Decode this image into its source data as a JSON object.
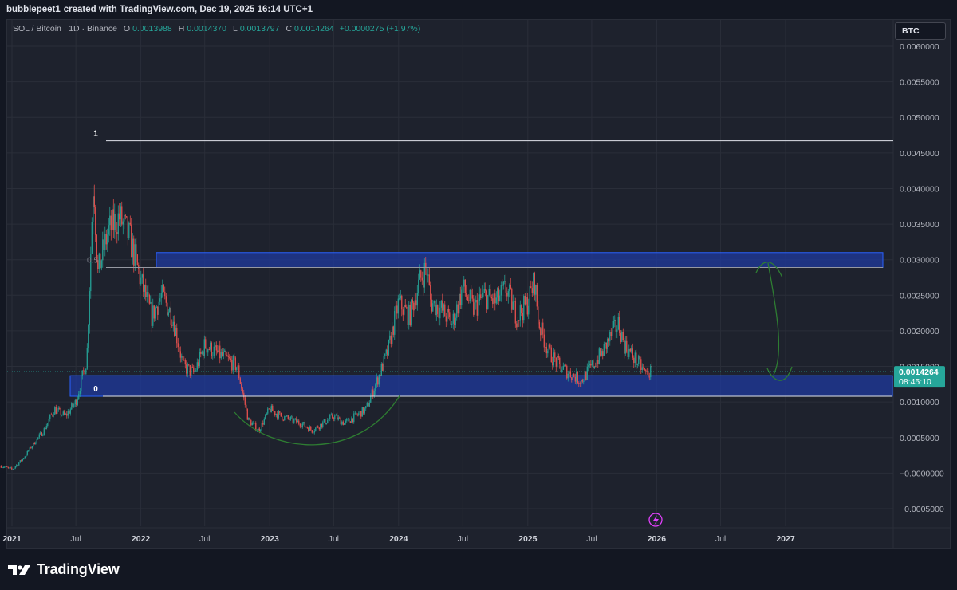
{
  "header": {
    "username": "bubblepeet1",
    "caption": "created with TradingView.com, Dec 19, 2025 16:14 UTC+1"
  },
  "legend": {
    "symbol": "SOL / Bitcoin · 1D · Binance",
    "open_label": "O",
    "open": "0.0013988",
    "high_label": "H",
    "high": "0.0014370",
    "low_label": "L",
    "low": "0.0013797",
    "close_label": "C",
    "close": "0.0014264",
    "change": "+0.0000275 (+1.97%)"
  },
  "toolbar": {
    "currency_button": "BTC"
  },
  "price_badge": {
    "price": "0.0014264",
    "countdown": "08:45:10"
  },
  "footer": {
    "brand": "TradingView",
    "logo_icon": "tradingview-logo-icon"
  },
  "colors": {
    "background": "#1e222d",
    "up": "#26a69a",
    "down": "#ef5350",
    "zone_fill": "#1f3a9e",
    "zone_border": "#2962ff",
    "arc": "#2e7d32"
  },
  "chart_data": {
    "type": "candlestick",
    "title": "SOL / Bitcoin · 1D · Binance",
    "y_axis_ticks": [
      "0.0060000",
      "0.0055000",
      "0.0050000",
      "0.0045000",
      "0.0040000",
      "0.0035000",
      "0.0030000",
      "0.0025000",
      "0.0020000",
      "0.0015000",
      "0.0010000",
      "0.0005000",
      "−0.0000000",
      "−0.0005000"
    ],
    "y_tick_values": [
      0.006,
      0.0055,
      0.005,
      0.0045,
      0.004,
      0.0035,
      0.003,
      0.0025,
      0.002,
      0.0015,
      0.001,
      0.0005,
      0.0,
      -0.0005
    ],
    "ylim": [
      -0.0005,
      0.006
    ],
    "x_axis_ticks": [
      "2021",
      "Jul",
      "2022",
      "Jul",
      "2023",
      "Jul",
      "2024",
      "Jul",
      "2025",
      "Jul",
      "2026",
      "Jul",
      "2027"
    ],
    "x_tick_dates": [
      "2021-01-01",
      "2021-07-01",
      "2022-01-01",
      "2022-07-01",
      "2023-01-01",
      "2023-07-01",
      "2024-01-01",
      "2024-07-01",
      "2025-01-01",
      "2025-07-01",
      "2026-01-01",
      "2026-07-01",
      "2027-01-01"
    ],
    "series": [
      {
        "x": [
          "2020-12-01",
          "2021-01-01",
          "2021-02-01",
          "2021-03-01",
          "2021-04-01",
          "2021-05-01",
          "2021-06-01",
          "2021-07-01",
          "2021-08-01",
          "2021-08-20",
          "2021-09-01",
          "2021-09-10",
          "2021-10-01",
          "2021-11-01",
          "2021-12-01",
          "2022-01-01",
          "2022-02-01",
          "2022-03-01",
          "2022-04-01",
          "2022-05-01",
          "2022-06-01",
          "2022-07-01",
          "2022-08-01",
          "2022-09-01",
          "2022-10-01",
          "2022-11-01",
          "2022-12-01",
          "2023-01-01",
          "2023-02-01",
          "2023-03-01",
          "2023-04-01",
          "2023-05-01",
          "2023-06-01",
          "2023-07-01",
          "2023-08-01",
          "2023-09-01",
          "2023-10-01",
          "2023-11-01",
          "2023-12-01",
          "2024-01-01",
          "2024-02-01",
          "2024-03-01",
          "2024-03-20",
          "2024-04-01",
          "2024-05-01",
          "2024-06-01",
          "2024-07-01",
          "2024-08-01",
          "2024-09-01",
          "2024-10-01",
          "2024-11-01",
          "2024-12-01",
          "2025-01-01",
          "2025-01-20",
          "2025-02-01",
          "2025-03-01",
          "2025-04-01",
          "2025-05-01",
          "2025-06-01",
          "2025-07-01",
          "2025-08-01",
          "2025-09-01",
          "2025-09-15",
          "2025-10-01",
          "2025-11-01",
          "2025-12-01",
          "2025-12-19"
        ],
        "close": [
          0.0001,
          5e-05,
          0.0002,
          0.0004,
          0.0006,
          0.0009,
          0.0008,
          0.001,
          0.0016,
          0.0042,
          0.0028,
          0.003,
          0.0034,
          0.0036,
          0.0033,
          0.0027,
          0.0022,
          0.0025,
          0.0022,
          0.0015,
          0.0014,
          0.0018,
          0.0017,
          0.0016,
          0.0015,
          0.00075,
          0.0006,
          0.0009,
          0.0008,
          0.00075,
          0.0007,
          0.0006,
          0.0007,
          0.0008,
          0.0007,
          0.0008,
          0.0009,
          0.0013,
          0.0017,
          0.0024,
          0.0022,
          0.0027,
          0.0029,
          0.0024,
          0.0023,
          0.0021,
          0.0026,
          0.0023,
          0.0025,
          0.0024,
          0.0026,
          0.0022,
          0.0024,
          0.0027,
          0.0021,
          0.0017,
          0.0015,
          0.0014,
          0.0013,
          0.0015,
          0.0017,
          0.002,
          0.0021,
          0.0018,
          0.0016,
          0.0014,
          0.0014264
        ]
      }
    ],
    "annotations": {
      "fib_levels": [
        {
          "label": "1",
          "value": 0.00467
        },
        {
          "label": "0.5",
          "value": 0.00289
        },
        {
          "label": "0",
          "value": 0.00108
        }
      ],
      "zones": [
        {
          "from": 0.00289,
          "to": 0.0031
        },
        {
          "from": 0.00108,
          "to": 0.00137
        }
      ]
    }
  }
}
